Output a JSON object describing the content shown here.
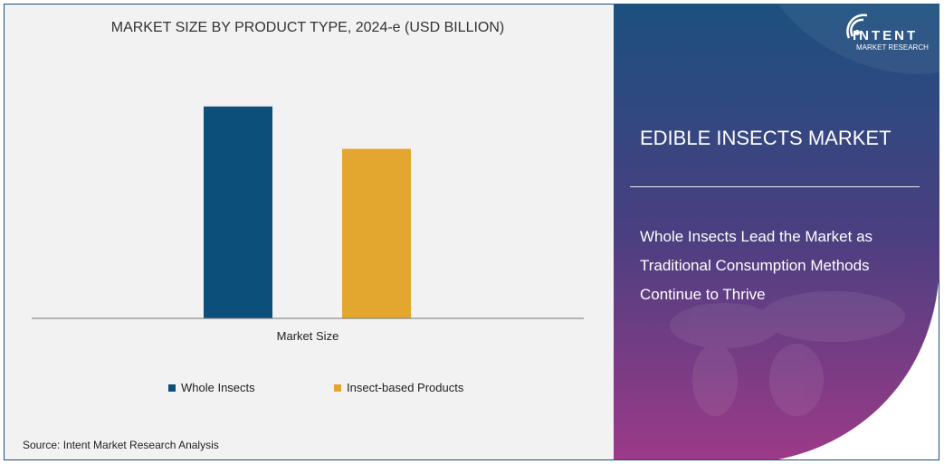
{
  "chart_data": {
    "type": "bar",
    "title": "MARKET SIZE BY PRODUCT TYPE, 2024-e (USD BILLION)",
    "categories": [
      "Market Size"
    ],
    "series": [
      {
        "name": "Whole Insects",
        "values": [
          1.0
        ],
        "color": "#0b4f7a"
      },
      {
        "name": "Insect-based Products",
        "values": [
          0.8
        ],
        "color": "#e3a72f"
      }
    ],
    "ylim": [
      0,
      1.05
    ],
    "grid": false,
    "legend": "bottom",
    "y_axis_shown": false
  },
  "source": "Source:  Intent Market Research Analysis",
  "panel": {
    "title": "EDIBLE INSECTS MARKET",
    "subtitle": "Whole Insects Lead the Market as Traditional Consumption Methods Continue to Thrive",
    "gradient_top": "#1c507f",
    "gradient_bottom": "#9c3a88"
  },
  "logo": {
    "name": "INTENT",
    "tagline": "MARKET RESEARCH",
    "tm": "™"
  }
}
